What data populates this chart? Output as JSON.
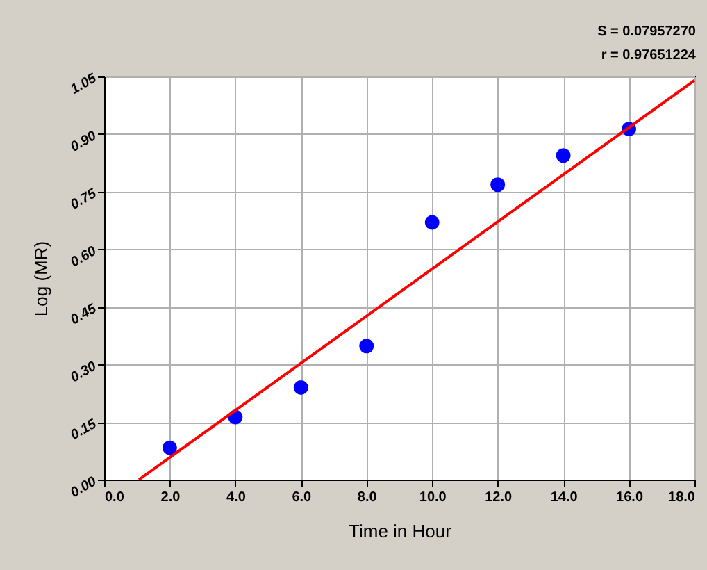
{
  "chart_data": {
    "type": "scatter",
    "xlabel": "Time in Hour",
    "ylabel": "Log (MR)",
    "annotations": [
      "S = 0.07957270",
      "r = 0.97651224"
    ],
    "xlim": [
      0,
      18
    ],
    "ylim": [
      0,
      1.05
    ],
    "xticks": [
      {
        "value": 0,
        "label": "0.0"
      },
      {
        "value": 2,
        "label": "2.0"
      },
      {
        "value": 4,
        "label": "4.0"
      },
      {
        "value": 6,
        "label": "6.0"
      },
      {
        "value": 8,
        "label": "8.0"
      },
      {
        "value": 10,
        "label": "10.0"
      },
      {
        "value": 12,
        "label": "12.0"
      },
      {
        "value": 14,
        "label": "14.0"
      },
      {
        "value": 16,
        "label": "16.0"
      },
      {
        "value": 18,
        "label": "18.0"
      }
    ],
    "yticks": [
      {
        "value": 0,
        "label": "0.00"
      },
      {
        "value": 0.15,
        "label": "0.15"
      },
      {
        "value": 0.3,
        "label": "0.30"
      },
      {
        "value": 0.45,
        "label": "0.45"
      },
      {
        "value": 0.6,
        "label": "0.60"
      },
      {
        "value": 0.75,
        "label": "0.75"
      },
      {
        "value": 0.9,
        "label": "0.90"
      },
      {
        "value": 1.05,
        "label": "1.05"
      }
    ],
    "grid": true,
    "series": [
      {
        "marker": "circle",
        "color": "#0000ff",
        "x": [
          2,
          4,
          6,
          8,
          10,
          12,
          14,
          16
        ],
        "values": [
          0.083,
          0.163,
          0.24,
          0.348,
          0.67,
          0.768,
          0.844,
          0.913
        ]
      },
      {
        "type": "line",
        "color": "#ff0000",
        "x": [
          1.06,
          18
        ],
        "values": [
          0,
          1.04
        ]
      }
    ]
  }
}
